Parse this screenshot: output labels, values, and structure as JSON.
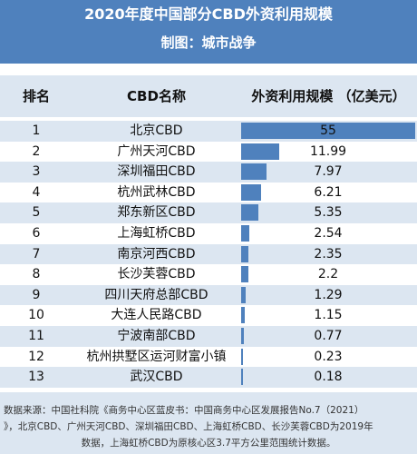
{
  "header": {
    "title": "2020年度中国部分CBD外资利用规模",
    "subtitle": "制图：城市战争"
  },
  "columns": {
    "rank": "排名",
    "name": "CBD名称",
    "value": "外资利用规模 （亿美元）"
  },
  "colors": {
    "bar": "#4f81bd",
    "header_bg": "#4f81bd",
    "row_alt": "#dce6f1"
  },
  "chart_data": {
    "type": "table",
    "title": "2020年度中国部分CBD外资利用规模",
    "value_label": "外资利用规模 （亿美元）",
    "rows": [
      {
        "rank": "1",
        "name": "北京CBD",
        "value": 55,
        "label": "55"
      },
      {
        "rank": "2",
        "name": "广州天河CBD",
        "value": 11.99,
        "label": "11.99"
      },
      {
        "rank": "3",
        "name": "深圳福田CBD",
        "value": 7.97,
        "label": "7.97"
      },
      {
        "rank": "4",
        "name": "杭州武林CBD",
        "value": 6.21,
        "label": "6.21"
      },
      {
        "rank": "5",
        "name": "郑东新区CBD",
        "value": 5.35,
        "label": "5.35"
      },
      {
        "rank": "6",
        "name": "上海虹桥CBD",
        "value": 2.54,
        "label": "2.54"
      },
      {
        "rank": "7",
        "name": "南京河西CBD",
        "value": 2.35,
        "label": "2.35"
      },
      {
        "rank": "8",
        "name": "长沙芙蓉CBD",
        "value": 2.2,
        "label": "2.2"
      },
      {
        "rank": "9",
        "name": "四川天府总部CBD",
        "value": 1.29,
        "label": "1.29"
      },
      {
        "rank": "10",
        "name": "大连人民路CBD",
        "value": 1.15,
        "label": "1.15"
      },
      {
        "rank": "11",
        "name": "宁波南部CBD",
        "value": 0.77,
        "label": "0.77"
      },
      {
        "rank": "12",
        "name": "杭州拱墅区运河财富小镇",
        "value": 0.23,
        "label": "0.23"
      },
      {
        "rank": "13",
        "name": "武汉CBD",
        "value": 0.18,
        "label": "0.18"
      }
    ]
  },
  "footer": {
    "source": "数据来源：中国社科院《商务中心区蓝皮书：中国商务中心区发展报告No.7（2021）",
    "note_line1": "》，北京CBD、广州天河CBD、深圳福田CBD、上海虹桥CBD、长沙芙蓉CBD为2019年",
    "note_line2": "数据，上海虹桥CBD为原核心区3.7平方公里范围统计数据。"
  }
}
